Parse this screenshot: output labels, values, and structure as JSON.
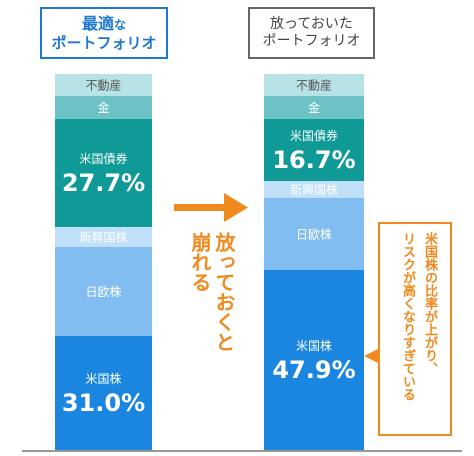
{
  "left_title": {
    "line1": "最適",
    "line1_small": "な",
    "line2": "ポートフォリオ"
  },
  "right_title": {
    "line1": "放っておいた",
    "line2": "ポートフォリオ"
  },
  "arrow_text": {
    "col1": "放っておくと",
    "col2": "崩れる"
  },
  "callout": {
    "line1": "米国株の比率が上がり、",
    "line2": "リスクが高くなりすぎている"
  },
  "colors": {
    "blue_title": "#1f78d1",
    "orange": "#ef8a1f"
  },
  "chart_data": {
    "type": "bar",
    "stacked": true,
    "categories": [
      "最適なポートフォリオ",
      "放っておいたポートフォリオ"
    ],
    "series": [
      {
        "name": "米国株",
        "values": [
          31.0,
          47.9
        ],
        "color": "#1a86e0",
        "label_color": "#ffffff"
      },
      {
        "name": "日欧株",
        "values": [
          null,
          null
        ],
        "color": "#81bdf0",
        "label_color": "#ffffff"
      },
      {
        "name": "新興国株",
        "values": [
          null,
          null
        ],
        "color": "#c0dff8",
        "label_color": "#ffffff"
      },
      {
        "name": "米国債券",
        "values": [
          27.7,
          16.7
        ],
        "color": "#0f9a98",
        "label_color": "#ffffff"
      },
      {
        "name": "金",
        "values": [
          null,
          null
        ],
        "color": "#6cc2c4",
        "label_color": "#ffffff"
      },
      {
        "name": "不動産",
        "values": [
          null,
          null
        ],
        "color": "#b7e2e6",
        "label_color": "#555555"
      }
    ],
    "value_labels": [
      {
        "series": "米国株",
        "left": "31.0%",
        "right": "47.9%"
      },
      {
        "series": "米国債券",
        "left": "27.7%",
        "right": "16.7%"
      }
    ]
  }
}
